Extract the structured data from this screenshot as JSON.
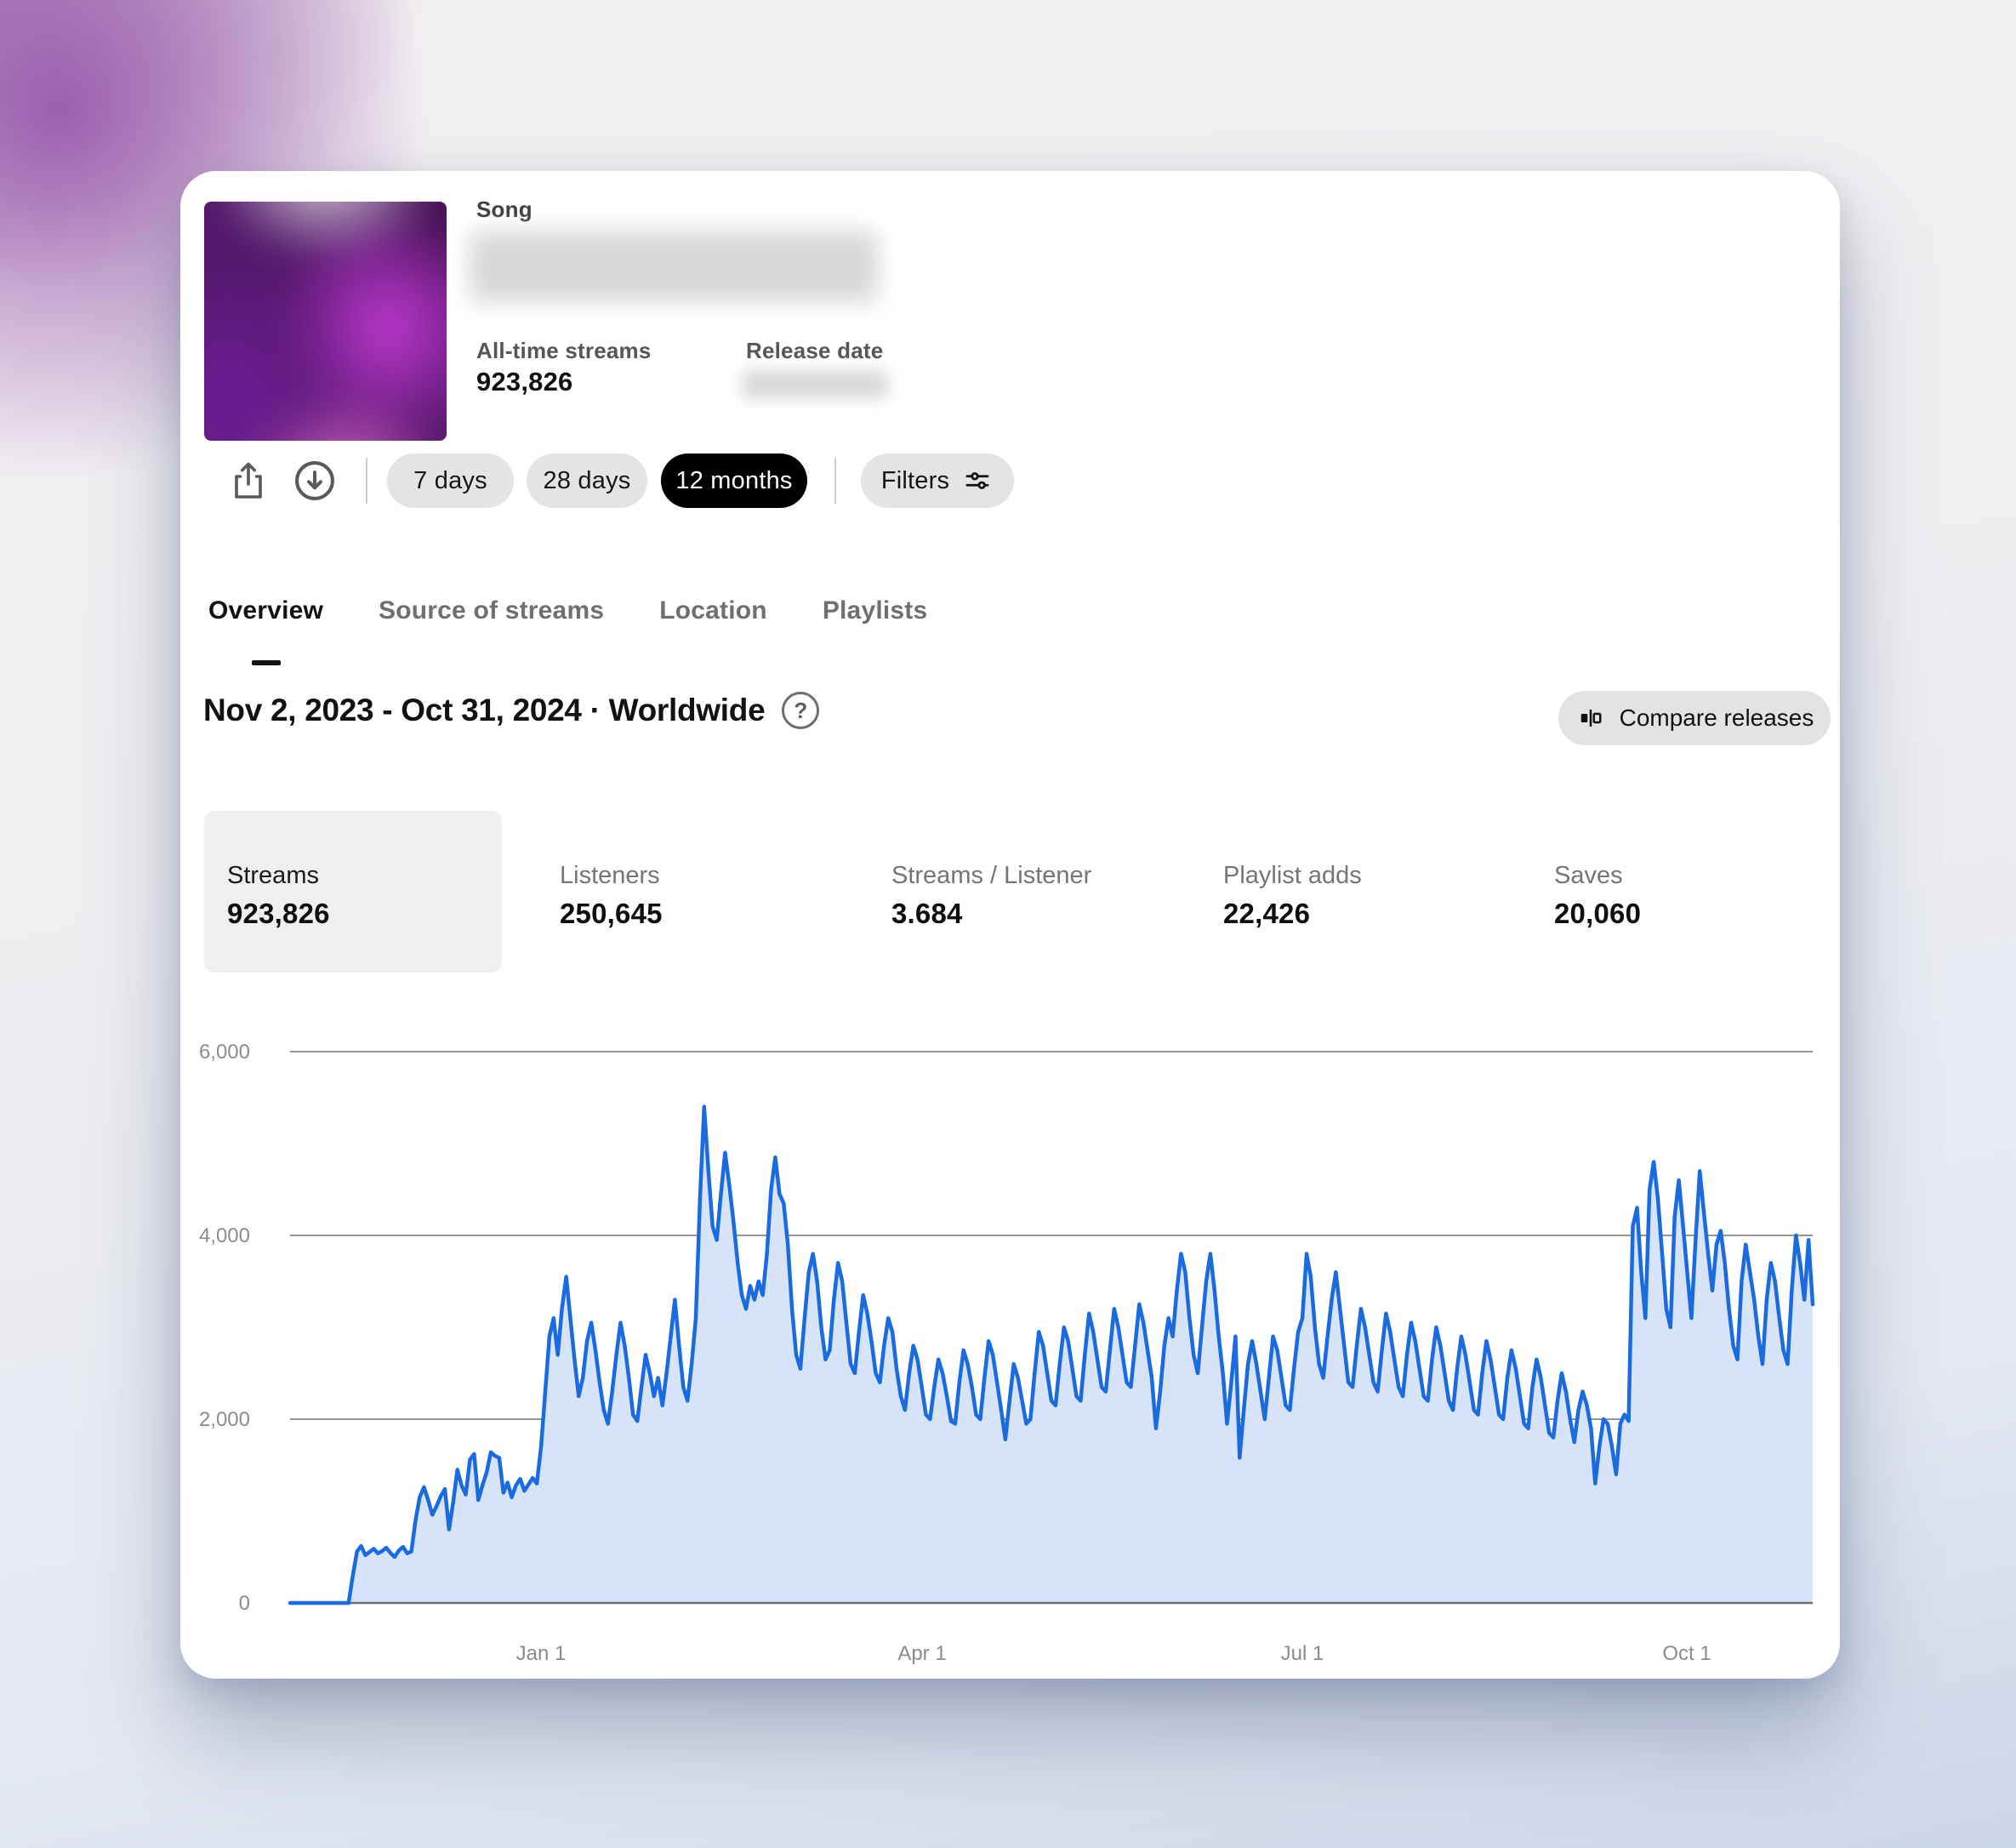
{
  "header": {
    "type_label": "Song",
    "all_time_label": "All-time streams",
    "all_time_value": "923,826",
    "release_label": "Release date"
  },
  "toolbar": {
    "ranges": [
      {
        "label": "7 days",
        "active": false
      },
      {
        "label": "28 days",
        "active": false
      },
      {
        "label": "12 months",
        "active": true
      }
    ],
    "filters_label": "Filters",
    "icons": [
      "share-icon",
      "download-icon",
      "filters-icon"
    ]
  },
  "tabs": [
    {
      "label": "Overview",
      "active": true
    },
    {
      "label": "Source of streams",
      "active": false
    },
    {
      "label": "Location",
      "active": false
    },
    {
      "label": "Playlists",
      "active": false
    }
  ],
  "date_range": {
    "text": "Nov 2, 2023 - Oct 31, 2024 · Worldwide"
  },
  "compare": {
    "label": "Compare releases",
    "icon": "compare-releases-icon"
  },
  "stats": [
    {
      "label": "Streams",
      "value": "923,826",
      "selected": true
    },
    {
      "label": "Listeners",
      "value": "250,645",
      "selected": false
    },
    {
      "label": "Streams / Listener",
      "value": "3.684",
      "selected": false
    },
    {
      "label": "Playlist adds",
      "value": "22,426",
      "selected": false
    },
    {
      "label": "Saves",
      "value": "20,060",
      "selected": false
    }
  ],
  "chart_data": {
    "type": "area",
    "title": "Streams per day",
    "date_start": "Nov 2, 2023",
    "date_end": "Oct 31, 2024",
    "x_unit": "day",
    "ylim": [
      0,
      6000
    ],
    "grid": true,
    "line_color": "#1a6be0",
    "fill_color": "#d7e4f8",
    "yticks": [
      "0",
      "2,000",
      "4,000",
      "6,000"
    ],
    "xticks": [
      {
        "label": "Jan 1",
        "day": 60
      },
      {
        "label": "Apr 1",
        "day": 151
      },
      {
        "label": "Jul 1",
        "day": 242
      },
      {
        "label": "Oct 1",
        "day": 334
      }
    ],
    "values": [
      0,
      0,
      0,
      0,
      0,
      0,
      0,
      0,
      0,
      0,
      0,
      0,
      0,
      0,
      0,
      300,
      560,
      620,
      520,
      555,
      590,
      540,
      565,
      600,
      545,
      500,
      570,
      610,
      540,
      560,
      900,
      1150,
      1260,
      1120,
      960,
      1050,
      1160,
      1240,
      800,
      1100,
      1450,
      1280,
      1180,
      1560,
      1620,
      1120,
      1280,
      1420,
      1640,
      1600,
      1580,
      1200,
      1310,
      1150,
      1280,
      1350,
      1220,
      1290,
      1360,
      1300,
      1700,
      2300,
      2900,
      3100,
      2700,
      3200,
      3550,
      3100,
      2650,
      2250,
      2450,
      2850,
      3050,
      2750,
      2400,
      2100,
      1950,
      2300,
      2700,
      3050,
      2800,
      2450,
      2050,
      1980,
      2350,
      2700,
      2500,
      2250,
      2450,
      2150,
      2500,
      2900,
      3300,
      2800,
      2350,
      2200,
      2600,
      3100,
      4400,
      5400,
      4700,
      4100,
      3950,
      4450,
      4900,
      4550,
      4150,
      3700,
      3350,
      3200,
      3450,
      3300,
      3500,
      3350,
      3800,
      4500,
      4850,
      4450,
      4350,
      3900,
      3200,
      2700,
      2550,
      3100,
      3600,
      3800,
      3500,
      3000,
      2650,
      2750,
      3300,
      3700,
      3500,
      3050,
      2600,
      2500,
      2950,
      3350,
      3150,
      2850,
      2500,
      2400,
      2800,
      3100,
      2950,
      2550,
      2250,
      2100,
      2500,
      2800,
      2650,
      2350,
      2050,
      2000,
      2350,
      2650,
      2500,
      2250,
      1980,
      1950,
      2400,
      2750,
      2600,
      2350,
      2050,
      2000,
      2450,
      2850,
      2700,
      2400,
      2100,
      1780,
      2200,
      2600,
      2450,
      2200,
      1950,
      2000,
      2500,
      2950,
      2800,
      2500,
      2200,
      2150,
      2600,
      3000,
      2850,
      2550,
      2250,
      2200,
      2700,
      3150,
      2950,
      2650,
      2350,
      2300,
      2750,
      3200,
      3000,
      2700,
      2400,
      2350,
      2800,
      3250,
      3050,
      2750,
      2450,
      1900,
      2300,
      2800,
      3100,
      2900,
      3400,
      3800,
      3600,
      3100,
      2700,
      2500,
      3000,
      3500,
      3800,
      3400,
      2900,
      2500,
      1950,
      2400,
      2900,
      1580,
      2100,
      2600,
      2850,
      2600,
      2300,
      2000,
      2450,
      2900,
      2750,
      2450,
      2150,
      2100,
      2550,
      2950,
      3100,
      3800,
      3550,
      3000,
      2600,
      2450,
      2900,
      3300,
      3600,
      3200,
      2800,
      2400,
      2350,
      2800,
      3200,
      3000,
      2700,
      2400,
      2300,
      2750,
      3150,
      2950,
      2650,
      2350,
      2250,
      2700,
      3050,
      2850,
      2550,
      2250,
      2200,
      2650,
      3000,
      2800,
      2500,
      2200,
      2100,
      2550,
      2900,
      2700,
      2400,
      2100,
      2050,
      2500,
      2850,
      2650,
      2350,
      2050,
      2000,
      2450,
      2750,
      2550,
      2250,
      1950,
      1900,
      2350,
      2650,
      2450,
      2150,
      1850,
      1800,
      2200,
      2500,
      2300,
      2000,
      1750,
      2100,
      2300,
      2150,
      1900,
      1300,
      1700,
      2000,
      1950,
      1700,
      1400,
      1950,
      2050,
      1980,
      4100,
      4300,
      3600,
      3100,
      4500,
      4800,
      4400,
      3800,
      3200,
      3000,
      4200,
      4600,
      4100,
      3600,
      3100,
      3950,
      4700,
      4250,
      3800,
      3400,
      3900,
      4050,
      3700,
      3200,
      2800,
      2650,
      3500,
      3900,
      3600,
      3300,
      2900,
      2600,
      3300,
      3700,
      3500,
      3100,
      2750,
      2600,
      3400,
      4000,
      3700,
      3300,
      3950,
      3250
    ]
  }
}
